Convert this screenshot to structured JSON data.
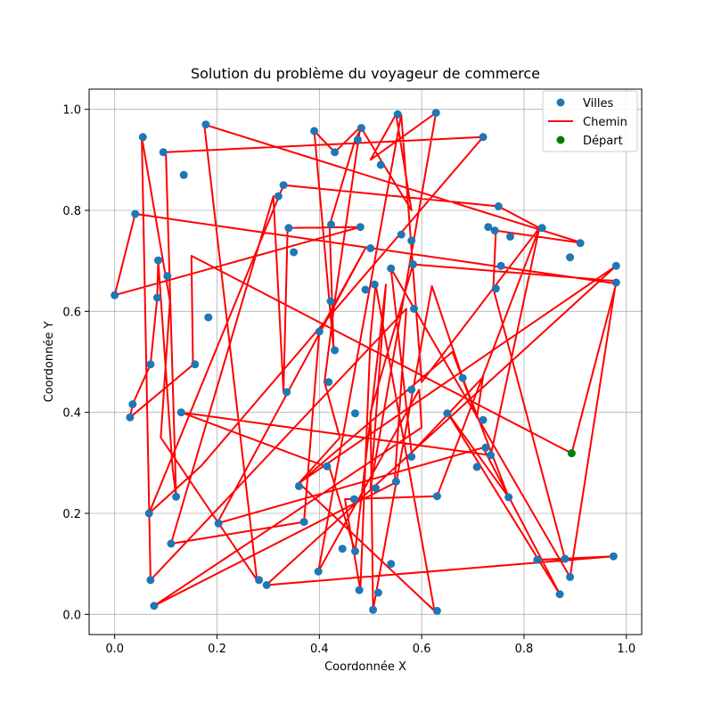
{
  "chart_data": {
    "type": "scatter",
    "title": "Solution du problème du voyageur de commerce",
    "xlabel": "Coordonnée X",
    "ylabel": "Coordonnée Y",
    "xlim": [
      -0.05,
      1.03
    ],
    "ylim": [
      -0.04,
      1.04
    ],
    "xticks": [
      "0.0",
      "0.2",
      "0.4",
      "0.6",
      "0.8",
      "1.0"
    ],
    "yticks": [
      "0.0",
      "0.2",
      "0.4",
      "0.6",
      "0.8",
      "1.0"
    ],
    "grid": true,
    "legend_position": "top-right",
    "legend": [
      "Villes",
      "Chemin",
      "Départ"
    ],
    "colors": {
      "cities": "#1f77b4",
      "path": "#ff0000",
      "start": "#008000"
    },
    "start": [
      0.893,
      0.319
    ],
    "path": [
      [
        0.893,
        0.319
      ],
      [
        0.15,
        0.71
      ],
      [
        0.153,
        0.494
      ],
      [
        0.03,
        0.39
      ],
      [
        0.035,
        0.416
      ],
      [
        0.07,
        0.495
      ],
      [
        0.083,
        0.627
      ],
      [
        0.085,
        0.701
      ],
      [
        0.113,
        0.29
      ],
      [
        0.12,
        0.233
      ],
      [
        0.1,
        0.915
      ],
      [
        0.72,
        0.945
      ],
      [
        0.17,
        0.295
      ],
      [
        0.067,
        0.2
      ],
      [
        0.33,
        0.85
      ],
      [
        0.75,
        0.808
      ],
      [
        0.83,
        0.765
      ],
      [
        0.735,
        0.315
      ],
      [
        0.13,
        0.4
      ],
      [
        0.42,
        0.29
      ],
      [
        0.47,
        0.125
      ],
      [
        0.53,
        0.653
      ],
      [
        0.5,
        0.25
      ],
      [
        0.628,
        0.993
      ],
      [
        0.5,
        0.9
      ],
      [
        0.55,
        0.99
      ],
      [
        0.58,
        0.8
      ],
      [
        0.482,
        0.963
      ],
      [
        0.47,
        0.94
      ],
      [
        0.42,
        0.77
      ],
      [
        0.428,
        0.523
      ],
      [
        0.39,
        0.957
      ],
      [
        0.43,
        0.915
      ],
      [
        0.48,
        0.965
      ],
      [
        0.43,
        0.62
      ],
      [
        0.41,
        0.46
      ],
      [
        0.44,
        0.35
      ],
      [
        0.36,
        0.26
      ],
      [
        0.98,
        0.69
      ],
      [
        0.296,
        0.058
      ],
      [
        0.975,
        0.115
      ],
      [
        0.826,
        0.108
      ],
      [
        0.88,
        0.11
      ],
      [
        0.74,
        0.645
      ],
      [
        0.745,
        0.76
      ],
      [
        0.915,
        0.735
      ],
      [
        0.175,
        0.97
      ],
      [
        0.278,
        0.068
      ],
      [
        0.09,
        0.35
      ],
      [
        0.108,
        0.62
      ],
      [
        0.053,
        0.945
      ],
      [
        0.07,
        0.068
      ],
      [
        0.57,
        0.605
      ],
      [
        0.547,
        0.26
      ],
      [
        0.077,
        0.017
      ],
      [
        0.6,
        0.37
      ],
      [
        0.595,
        0.445
      ],
      [
        0.398,
        0.085
      ],
      [
        0.56,
        0.99
      ],
      [
        0.6,
        0.46
      ],
      [
        0.83,
        0.765
      ],
      [
        0.63,
        0.234
      ],
      [
        0.45,
        0.228
      ],
      [
        0.48,
        0.048
      ],
      [
        0.5,
        0.55
      ],
      [
        0.51,
        0.653
      ],
      [
        0.625,
        0.007
      ],
      [
        0.36,
        0.26
      ],
      [
        0.66,
        0.52
      ],
      [
        0.708,
        0.39
      ],
      [
        0.72,
        0.47
      ],
      [
        0.58,
        0.32
      ],
      [
        0.54,
        0.685
      ],
      [
        0.89,
        0.074
      ],
      [
        0.98,
        0.66
      ],
      [
        0.583,
        0.693
      ],
      [
        0.5,
        0.4
      ],
      [
        0.505,
        0.009
      ],
      [
        0.62,
        0.65
      ],
      [
        0.68,
        0.468
      ],
      [
        0.77,
        0.232
      ],
      [
        0.65,
        0.4
      ],
      [
        0.87,
        0.04
      ],
      [
        0.72,
        0.33
      ],
      [
        0.2,
        0.18
      ],
      [
        0.49,
        0.725
      ],
      [
        0.4,
        0.56
      ],
      [
        0.37,
        0.183
      ],
      [
        0.11,
        0.14
      ],
      [
        0.31,
        0.828
      ],
      [
        0.33,
        0.44
      ],
      [
        0.338,
        0.765
      ],
      [
        0.48,
        0.767
      ],
      [
        0.0,
        0.632
      ],
      [
        0.04,
        0.793
      ],
      [
        0.98,
        0.655
      ],
      [
        0.893,
        0.319
      ]
    ],
    "cities": [
      [
        0.0,
        0.632
      ],
      [
        0.035,
        0.416
      ],
      [
        0.03,
        0.39
      ],
      [
        0.04,
        0.793
      ],
      [
        0.055,
        0.945
      ],
      [
        0.067,
        0.2
      ],
      [
        0.07,
        0.068
      ],
      [
        0.07,
        0.495
      ],
      [
        0.077,
        0.017
      ],
      [
        0.083,
        0.627
      ],
      [
        0.085,
        0.701
      ],
      [
        0.095,
        0.915
      ],
      [
        0.103,
        0.67
      ],
      [
        0.11,
        0.14
      ],
      [
        0.12,
        0.233
      ],
      [
        0.13,
        0.4
      ],
      [
        0.135,
        0.87
      ],
      [
        0.157,
        0.495
      ],
      [
        0.178,
        0.97
      ],
      [
        0.183,
        0.588
      ],
      [
        0.203,
        0.18
      ],
      [
        0.282,
        0.068
      ],
      [
        0.297,
        0.058
      ],
      [
        0.32,
        0.828
      ],
      [
        0.33,
        0.85
      ],
      [
        0.336,
        0.44
      ],
      [
        0.34,
        0.765
      ],
      [
        0.35,
        0.717
      ],
      [
        0.36,
        0.254
      ],
      [
        0.37,
        0.183
      ],
      [
        0.39,
        0.957
      ],
      [
        0.398,
        0.085
      ],
      [
        0.4,
        0.56
      ],
      [
        0.415,
        0.293
      ],
      [
        0.418,
        0.46
      ],
      [
        0.422,
        0.62
      ],
      [
        0.423,
        0.772
      ],
      [
        0.43,
        0.915
      ],
      [
        0.43,
        0.523
      ],
      [
        0.445,
        0.13
      ],
      [
        0.47,
        0.125
      ],
      [
        0.468,
        0.228
      ],
      [
        0.47,
        0.398
      ],
      [
        0.475,
        0.94
      ],
      [
        0.478,
        0.048
      ],
      [
        0.48,
        0.767
      ],
      [
        0.482,
        0.963
      ],
      [
        0.49,
        0.643
      ],
      [
        0.5,
        0.725
      ],
      [
        0.505,
        0.009
      ],
      [
        0.508,
        0.653
      ],
      [
        0.51,
        0.25
      ],
      [
        0.515,
        0.043
      ],
      [
        0.52,
        0.89
      ],
      [
        0.54,
        0.685
      ],
      [
        0.54,
        0.1
      ],
      [
        0.55,
        0.263
      ],
      [
        0.553,
        0.99
      ],
      [
        0.56,
        0.752
      ],
      [
        0.58,
        0.74
      ],
      [
        0.58,
        0.312
      ],
      [
        0.58,
        0.445
      ],
      [
        0.583,
        0.693
      ],
      [
        0.585,
        0.605
      ],
      [
        0.628,
        0.993
      ],
      [
        0.63,
        0.007
      ],
      [
        0.63,
        0.234
      ],
      [
        0.65,
        0.398
      ],
      [
        0.68,
        0.468
      ],
      [
        0.708,
        0.292
      ],
      [
        0.72,
        0.945
      ],
      [
        0.72,
        0.385
      ],
      [
        0.725,
        0.33
      ],
      [
        0.73,
        0.767
      ],
      [
        0.735,
        0.315
      ],
      [
        0.743,
        0.76
      ],
      [
        0.745,
        0.645
      ],
      [
        0.75,
        0.808
      ],
      [
        0.755,
        0.69
      ],
      [
        0.77,
        0.232
      ],
      [
        0.773,
        0.748
      ],
      [
        0.826,
        0.108
      ],
      [
        0.835,
        0.765
      ],
      [
        0.87,
        0.04
      ],
      [
        0.88,
        0.11
      ],
      [
        0.89,
        0.074
      ],
      [
        0.89,
        0.707
      ],
      [
        0.91,
        0.735
      ],
      [
        0.975,
        0.115
      ],
      [
        0.98,
        0.69
      ],
      [
        0.98,
        0.657
      ]
    ]
  }
}
